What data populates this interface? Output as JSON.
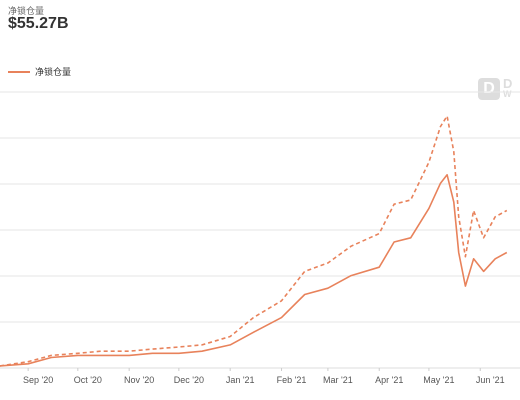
{
  "header": {
    "metric_label": "净锁仓量",
    "metric_value": "$55.27B"
  },
  "legend": {
    "label": "净锁仓量"
  },
  "watermark": {
    "letter": "D",
    "line1": "D",
    "line2": "W"
  },
  "colors": {
    "series": "#e8825b",
    "grid": "#e6e6e6",
    "axis_text": "#555555"
  },
  "chart_data": {
    "type": "line",
    "title": "",
    "xlabel": "",
    "ylabel": "",
    "grid": true,
    "legend_position": "top-left",
    "x_ticks": [
      "Sep '20",
      "Oct '20",
      "Nov '20",
      "Dec '20",
      "Jan '21",
      "Feb '21",
      "Mar '21",
      "Apr '21",
      "May '21",
      "Jun '21"
    ],
    "series": [
      {
        "name": "净锁仓量",
        "style": "dashed",
        "x": [
          "2020-08-15",
          "2020-09-01",
          "2020-09-15",
          "2020-10-01",
          "2020-10-15",
          "2020-11-01",
          "2020-11-15",
          "2020-12-01",
          "2020-12-15",
          "2021-01-01",
          "2021-01-15",
          "2021-02-01",
          "2021-02-15",
          "2021-03-01",
          "2021-03-15",
          "2021-04-01",
          "2021-04-10",
          "2021-04-20",
          "2021-05-01",
          "2021-05-08",
          "2021-05-12",
          "2021-05-16",
          "2021-05-19",
          "2021-05-23",
          "2021-05-28",
          "2021-06-03",
          "2021-06-10",
          "2021-06-17"
        ],
        "values": [
          1,
          3,
          6,
          7,
          8,
          8,
          9,
          10,
          11,
          15,
          24,
          32,
          46,
          50,
          58,
          64,
          78,
          80,
          98,
          115,
          120,
          103,
          72,
          53,
          75,
          62,
          72,
          75
        ]
      },
      {
        "name": "净锁仓量",
        "style": "solid",
        "x": [
          "2020-08-15",
          "2020-09-01",
          "2020-09-15",
          "2020-10-01",
          "2020-10-15",
          "2020-11-01",
          "2020-11-15",
          "2020-12-01",
          "2020-12-15",
          "2021-01-01",
          "2021-01-15",
          "2021-02-01",
          "2021-02-15",
          "2021-03-01",
          "2021-03-15",
          "2021-04-01",
          "2021-04-10",
          "2021-04-20",
          "2021-05-01",
          "2021-05-08",
          "2021-05-12",
          "2021-05-16",
          "2021-05-19",
          "2021-05-23",
          "2021-05-28",
          "2021-06-03",
          "2021-06-10",
          "2021-06-17"
        ],
        "values": [
          1,
          2,
          5,
          6,
          6,
          6,
          7,
          7,
          8,
          11,
          17,
          24,
          35,
          38,
          44,
          48,
          60,
          62,
          76,
          88,
          92,
          79,
          55,
          39,
          52,
          46,
          52,
          55
        ]
      }
    ]
  }
}
